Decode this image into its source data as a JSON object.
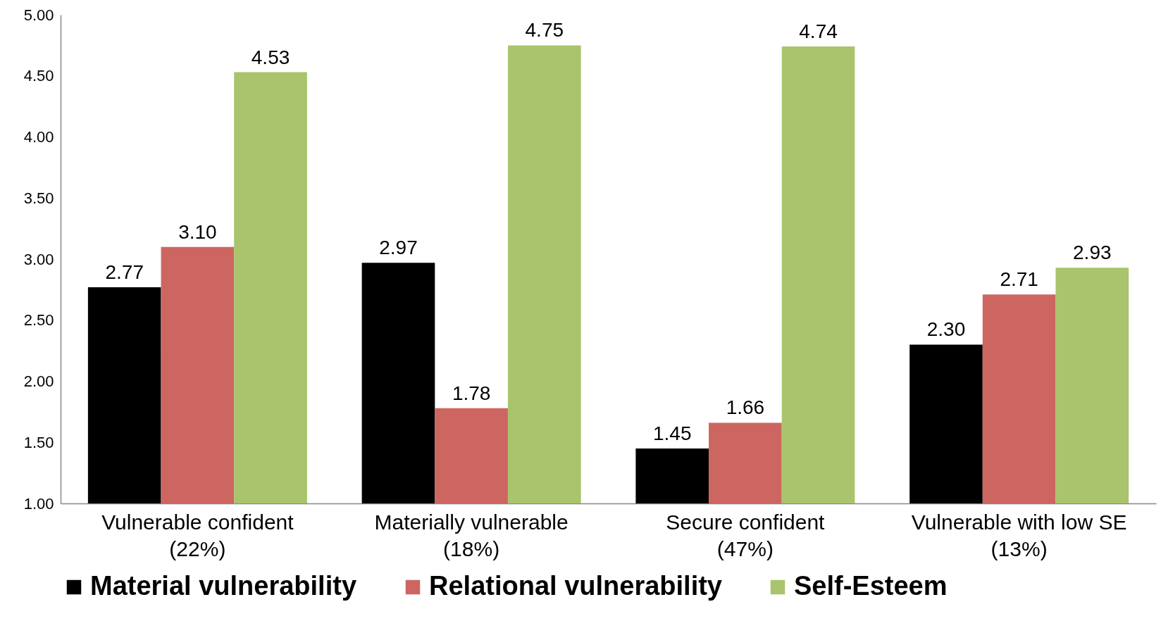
{
  "chart_data": {
    "type": "bar",
    "categories": [
      "Vulnerable confident\n(22%)",
      "Materially vulnerable\n(18%)",
      "Secure confident\n(47%)",
      "Vulnerable with low SE\n(13%)"
    ],
    "series": [
      {
        "name": "Material vulnerability",
        "color": "#000000",
        "values": [
          2.77,
          2.97,
          1.45,
          2.3
        ],
        "value_labels": [
          "2.77",
          "2.97",
          "1.45",
          "2.30"
        ]
      },
      {
        "name": "Relational vulnerability",
        "color": "#cd6660",
        "values": [
          3.1,
          1.78,
          1.66,
          2.71
        ],
        "value_labels": [
          "3.10",
          "1.78",
          "1.66",
          "2.71"
        ]
      },
      {
        "name": "Self-Esteem",
        "color": "#a9c46c",
        "values": [
          4.53,
          4.75,
          4.74,
          2.93
        ],
        "value_labels": [
          "4.53",
          "4.75",
          "4.74",
          "2.93"
        ]
      }
    ],
    "ylim": [
      1,
      5
    ],
    "yticks": [
      {
        "value": 1,
        "label": "1.00"
      },
      {
        "value": 1.5,
        "label": "1.50"
      },
      {
        "value": 2,
        "label": "2.00"
      },
      {
        "value": 2.5,
        "label": "2.50"
      },
      {
        "value": 3,
        "label": "3.00"
      },
      {
        "value": 3.5,
        "label": "3.50"
      },
      {
        "value": 4,
        "label": "4.00"
      },
      {
        "value": 4.5,
        "label": "4.50"
      },
      {
        "value": 5,
        "label": "5.00"
      }
    ],
    "grid": false,
    "legend": "bottom"
  }
}
